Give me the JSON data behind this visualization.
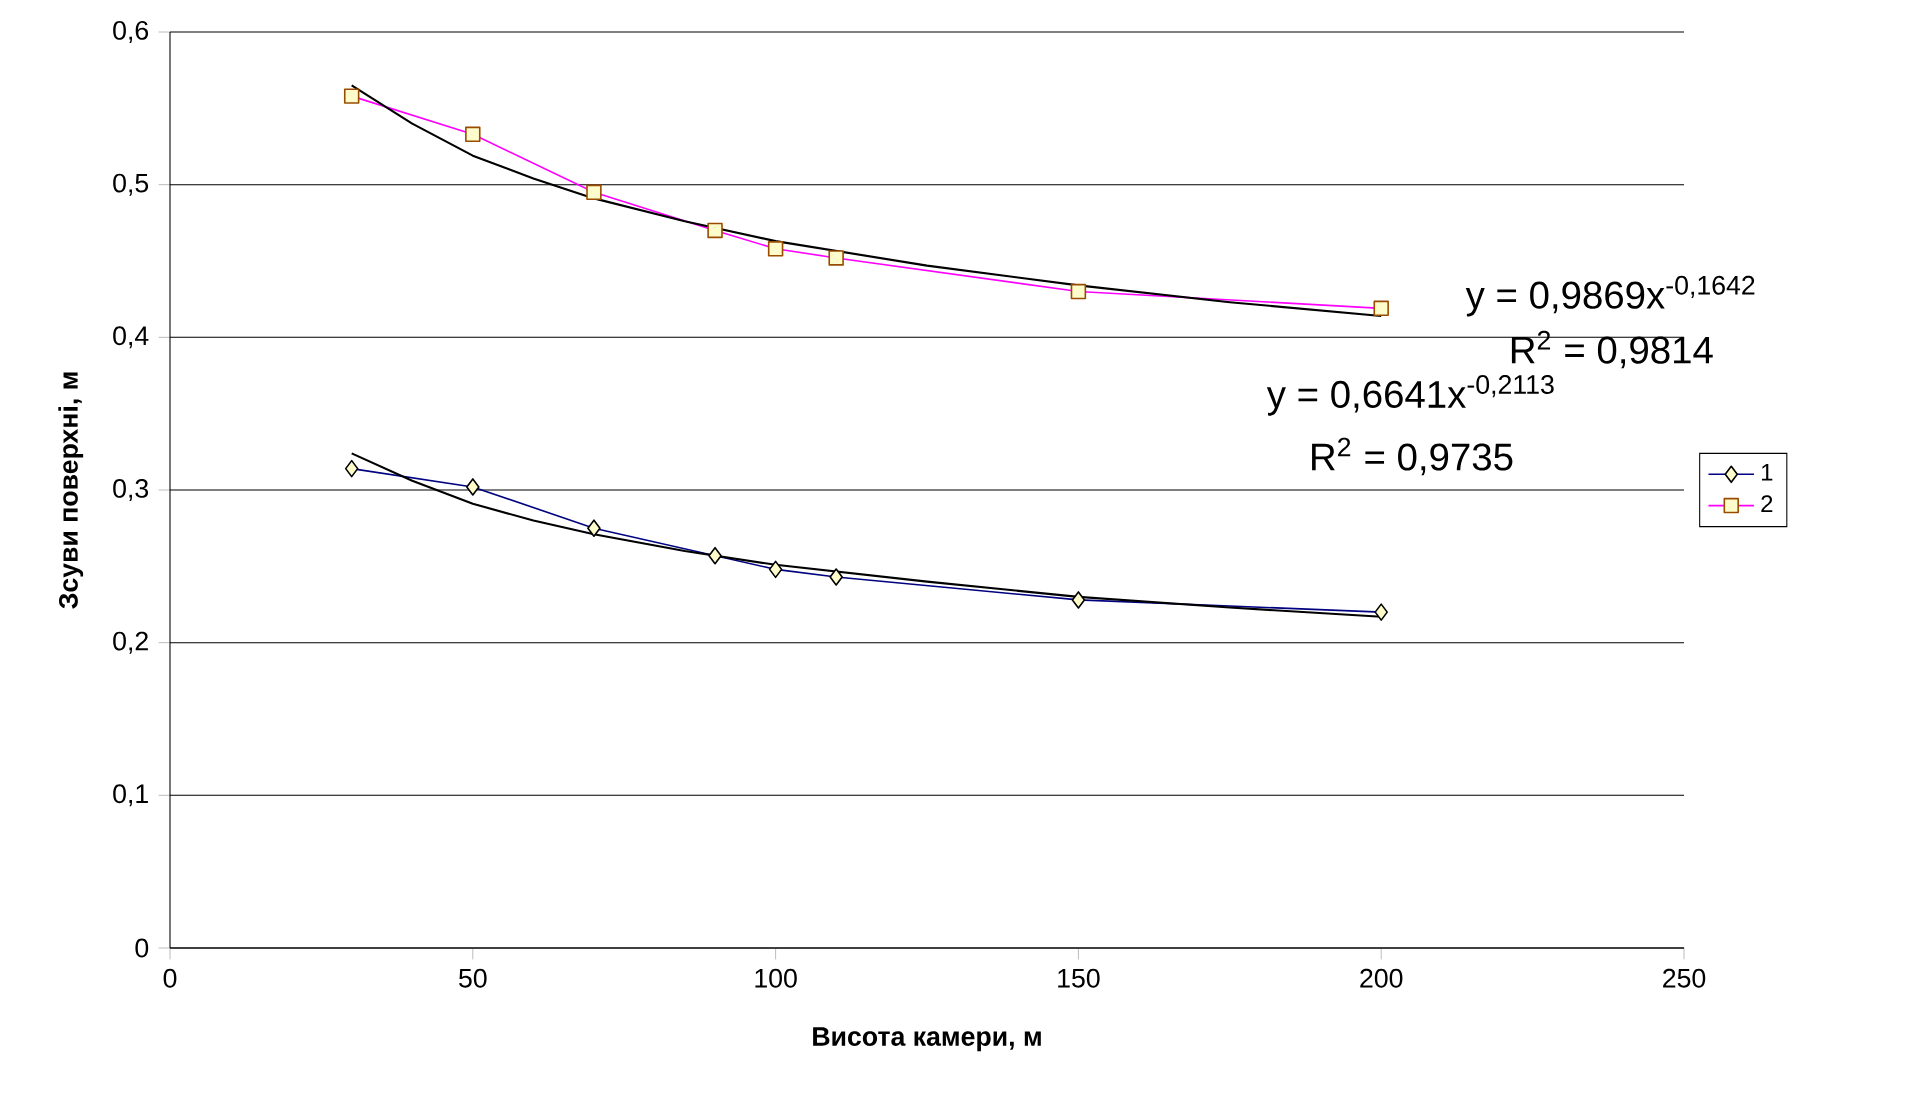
{
  "chart_data": {
    "type": "line",
    "xlabel": "Висота камери, м",
    "ylabel": "Зсуви поверхні, м",
    "xlim": [
      0,
      250
    ],
    "xticks": [
      0,
      50,
      100,
      150,
      200,
      250
    ],
    "ylim": [
      0,
      0.6
    ],
    "yticks": [
      {
        "value": 0,
        "label": "0"
      },
      {
        "value": 0.1,
        "label": "0,1"
      },
      {
        "value": 0.2,
        "label": "0,2"
      },
      {
        "value": 0.3,
        "label": "0,3"
      },
      {
        "value": 0.4,
        "label": "0,4"
      },
      {
        "value": 0.5,
        "label": "0,5"
      },
      {
        "value": 0.6,
        "label": "0,6"
      }
    ],
    "grid": "y",
    "legend": "right",
    "series": [
      {
        "name": "1",
        "color": "#000080",
        "marker": "diamond",
        "x": [
          30,
          50,
          70,
          90,
          100,
          110,
          150,
          200
        ],
        "values": [
          0.314,
          0.302,
          0.275,
          0.257,
          0.248,
          0.243,
          0.228,
          0.22
        ]
      },
      {
        "name": "2",
        "color": "#ff00ff",
        "marker": "square",
        "x": [
          30,
          50,
          70,
          90,
          100,
          110,
          150,
          200
        ],
        "values": [
          0.558,
          0.533,
          0.495,
          0.47,
          0.458,
          0.452,
          0.43,
          0.419
        ]
      },
      {
        "color": "#000000",
        "marker": "none",
        "x": [
          30,
          40,
          50,
          60,
          70,
          85,
          100,
          125,
          150,
          175,
          200
        ],
        "values": [
          0.324,
          0.306,
          0.291,
          0.28,
          0.271,
          0.26,
          0.251,
          0.24,
          0.23,
          0.223,
          0.217
        ]
      },
      {
        "color": "#000000",
        "marker": "none",
        "x": [
          30,
          40,
          50,
          60,
          70,
          85,
          100,
          125,
          150,
          175,
          200
        ],
        "values": [
          0.565,
          0.54,
          0.519,
          0.504,
          0.491,
          0.476,
          0.463,
          0.447,
          0.434,
          0.423,
          0.414
        ]
      }
    ],
    "annotations": [
      "y = 0,9869x$^{-0,1642}$",
      "R$^{2}$ = 0,9814",
      "y = 0,6641x$^{-0,2113}$",
      "R$^{2}$ = 0,9735"
    ]
  }
}
